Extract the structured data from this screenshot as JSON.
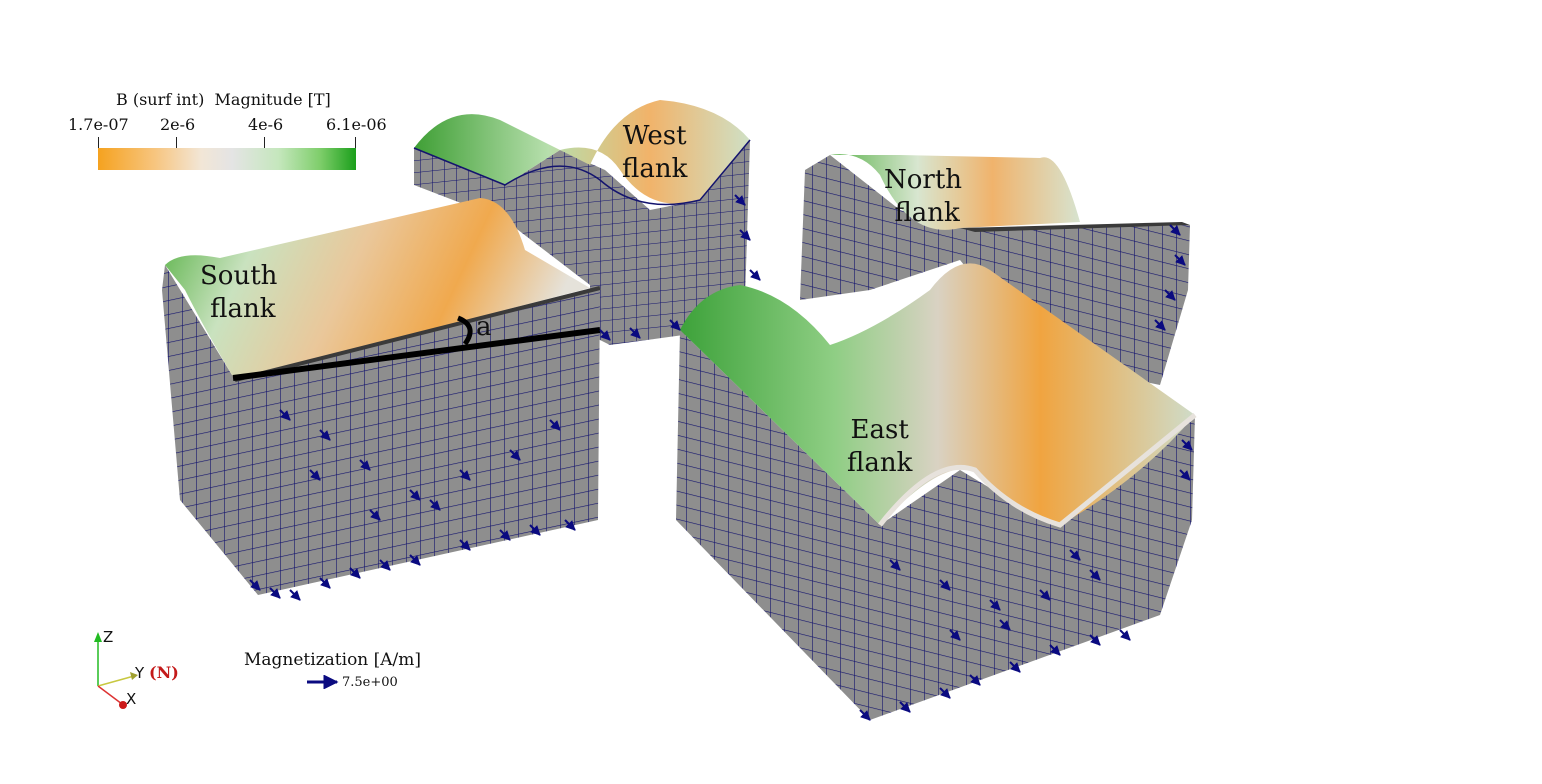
{
  "colorbar": {
    "title": "B (surf int)  Magnitude [T]",
    "ticks": [
      "1.7e-07",
      "2e-6",
      "4e-6",
      "6.1e-06"
    ],
    "colors": [
      "#f5a21f",
      "#e4e4e4",
      "#1b9f1b"
    ]
  },
  "blocks": {
    "south": "South\n flank",
    "west": "West\nflank",
    "north": "North\n flank",
    "east": "East\nflank"
  },
  "angle_label": "a",
  "glyph_legend": {
    "title": "Magnetization [A/m]",
    "value": "7.5e+00",
    "arrow_color": "#0a0a80"
  },
  "axes": {
    "z": "Z",
    "y": "Y",
    "x": "X",
    "north": "(N)"
  },
  "mesh_color": "#14146e",
  "face_color": "#8e8e8e"
}
